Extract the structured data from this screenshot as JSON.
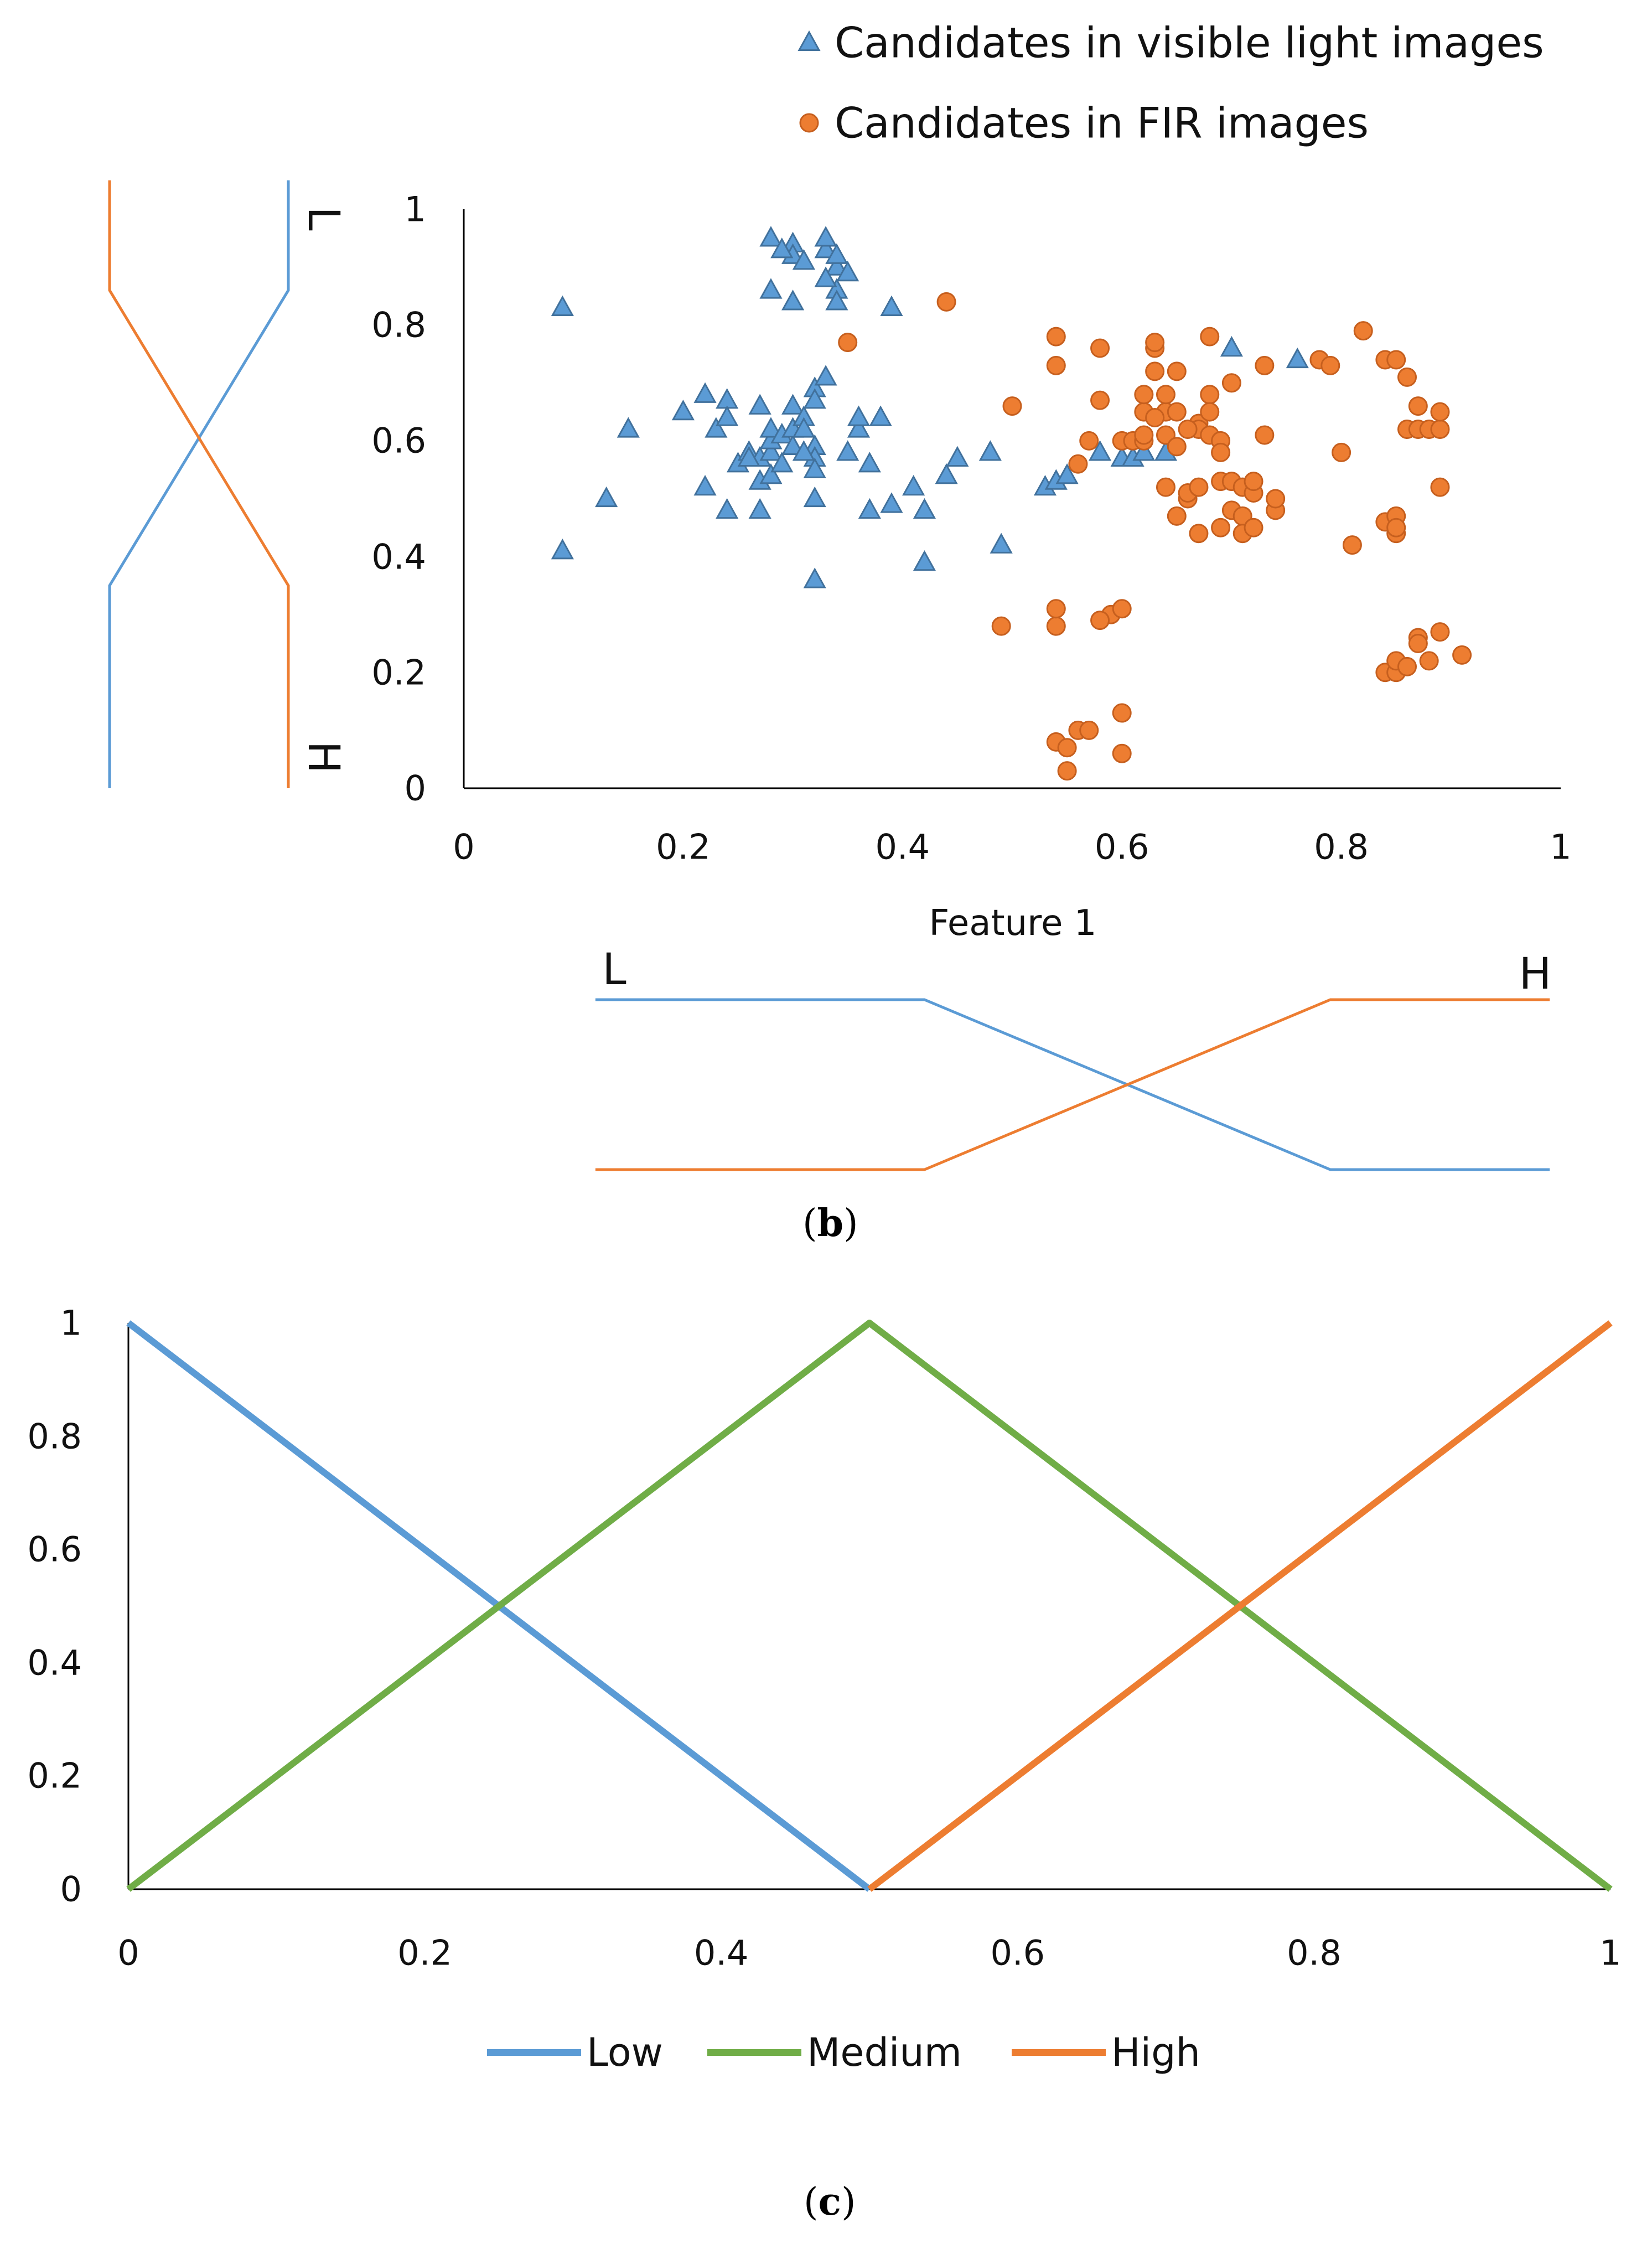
{
  "colors": {
    "visible": "#5b9bd5",
    "fir": "#ed7d31",
    "medium": "#70ad47",
    "axis": "#000000"
  },
  "captions": {
    "b": "b",
    "c": "c"
  },
  "chart_data": [
    {
      "type": "scatter",
      "id": "b",
      "xlabel": "Feature 1",
      "ylabel": "",
      "xlim": [
        0,
        1
      ],
      "ylim": [
        0,
        1
      ],
      "xticks": [
        "0",
        "0.2",
        "0.4",
        "0.6",
        "0.8",
        "1"
      ],
      "yticks": [
        "0",
        "0.2",
        "0.4",
        "0.6",
        "0.8",
        "1"
      ],
      "legend_position": "top-right",
      "legend": [
        "Candidates in visible light images",
        "Candidates in FIR images"
      ],
      "series": [
        {
          "name": "Candidates in visible light images",
          "marker": "triangle",
          "color": "#5b9bd5",
          "points": [
            [
              0.09,
              0.83
            ],
            [
              0.09,
              0.41
            ],
            [
              0.13,
              0.5
            ],
            [
              0.15,
              0.62
            ],
            [
              0.2,
              0.65
            ],
            [
              0.22,
              0.68
            ],
            [
              0.22,
              0.52
            ],
            [
              0.23,
              0.62
            ],
            [
              0.24,
              0.67
            ],
            [
              0.24,
              0.64
            ],
            [
              0.24,
              0.48
            ],
            [
              0.25,
              0.56
            ],
            [
              0.26,
              0.58
            ],
            [
              0.27,
              0.66
            ],
            [
              0.27,
              0.57
            ],
            [
              0.27,
              0.53
            ],
            [
              0.27,
              0.48
            ],
            [
              0.28,
              0.58
            ],
            [
              0.28,
              0.6
            ],
            [
              0.28,
              0.62
            ],
            [
              0.28,
              0.54
            ],
            [
              0.28,
              0.95
            ],
            [
              0.29,
              0.56
            ],
            [
              0.29,
              0.61
            ],
            [
              0.3,
              0.59
            ],
            [
              0.3,
              0.66
            ],
            [
              0.3,
              0.62
            ],
            [
              0.3,
              0.94
            ],
            [
              0.3,
              0.92
            ],
            [
              0.31,
              0.64
            ],
            [
              0.31,
              0.91
            ],
            [
              0.31,
              0.62
            ],
            [
              0.32,
              0.69
            ],
            [
              0.32,
              0.67
            ],
            [
              0.32,
              0.59
            ],
            [
              0.32,
              0.57
            ],
            [
              0.32,
              0.55
            ],
            [
              0.32,
              0.5
            ],
            [
              0.32,
              0.36
            ],
            [
              0.33,
              0.71
            ],
            [
              0.33,
              0.93
            ],
            [
              0.33,
              0.95
            ],
            [
              0.34,
              0.9
            ],
            [
              0.34,
              0.86
            ],
            [
              0.34,
              0.84
            ],
            [
              0.35,
              0.89
            ],
            [
              0.35,
              0.58
            ],
            [
              0.36,
              0.62
            ],
            [
              0.36,
              0.64
            ],
            [
              0.37,
              0.56
            ],
            [
              0.37,
              0.48
            ],
            [
              0.38,
              0.64
            ],
            [
              0.39,
              0.49
            ],
            [
              0.39,
              0.83
            ],
            [
              0.41,
              0.52
            ],
            [
              0.42,
              0.48
            ],
            [
              0.42,
              0.39
            ],
            [
              0.44,
              0.54
            ],
            [
              0.45,
              0.57
            ],
            [
              0.48,
              0.58
            ],
            [
              0.49,
              0.42
            ],
            [
              0.53,
              0.52
            ],
            [
              0.54,
              0.53
            ],
            [
              0.55,
              0.54
            ],
            [
              0.58,
              0.58
            ],
            [
              0.6,
              0.57
            ],
            [
              0.61,
              0.57
            ],
            [
              0.62,
              0.58
            ],
            [
              0.64,
              0.58
            ],
            [
              0.7,
              0.76
            ],
            [
              0.76,
              0.74
            ],
            [
              0.28,
              0.86
            ],
            [
              0.3,
              0.84
            ],
            [
              0.33,
              0.88
            ],
            [
              0.34,
              0.92
            ],
            [
              0.29,
              0.93
            ],
            [
              0.31,
              0.58
            ],
            [
              0.26,
              0.57
            ]
          ]
        },
        {
          "name": "Candidates in FIR images",
          "marker": "circle",
          "color": "#ed7d31",
          "points": [
            [
              0.44,
              0.84
            ],
            [
              0.35,
              0.77
            ],
            [
              0.5,
              0.66
            ],
            [
              0.54,
              0.78
            ],
            [
              0.54,
              0.73
            ],
            [
              0.55,
              0.03
            ],
            [
              0.54,
              0.08
            ],
            [
              0.55,
              0.07
            ],
            [
              0.56,
              0.1
            ],
            [
              0.57,
              0.1
            ],
            [
              0.56,
              0.56
            ],
            [
              0.57,
              0.6
            ],
            [
              0.58,
              0.76
            ],
            [
              0.58,
              0.67
            ],
            [
              0.59,
              0.3
            ],
            [
              0.58,
              0.29
            ],
            [
              0.6,
              0.31
            ],
            [
              0.6,
              0.13
            ],
            [
              0.6,
              0.06
            ],
            [
              0.6,
              0.6
            ],
            [
              0.61,
              0.6
            ],
            [
              0.62,
              0.6
            ],
            [
              0.62,
              0.65
            ],
            [
              0.62,
              0.68
            ],
            [
              0.63,
              0.72
            ],
            [
              0.63,
              0.76
            ],
            [
              0.63,
              0.77
            ],
            [
              0.64,
              0.65
            ],
            [
              0.64,
              0.61
            ],
            [
              0.64,
              0.52
            ],
            [
              0.65,
              0.47
            ],
            [
              0.65,
              0.59
            ],
            [
              0.65,
              0.65
            ],
            [
              0.65,
              0.72
            ],
            [
              0.66,
              0.5
            ],
            [
              0.66,
              0.51
            ],
            [
              0.67,
              0.44
            ],
            [
              0.67,
              0.63
            ],
            [
              0.67,
              0.62
            ],
            [
              0.67,
              0.52
            ],
            [
              0.68,
              0.78
            ],
            [
              0.68,
              0.68
            ],
            [
              0.68,
              0.65
            ],
            [
              0.68,
              0.61
            ],
            [
              0.69,
              0.6
            ],
            [
              0.69,
              0.58
            ],
            [
              0.69,
              0.53
            ],
            [
              0.69,
              0.45
            ],
            [
              0.7,
              0.7
            ],
            [
              0.7,
              0.53
            ],
            [
              0.7,
              0.48
            ],
            [
              0.71,
              0.52
            ],
            [
              0.71,
              0.47
            ],
            [
              0.71,
              0.44
            ],
            [
              0.72,
              0.51
            ],
            [
              0.72,
              0.53
            ],
            [
              0.72,
              0.45
            ],
            [
              0.73,
              0.73
            ],
            [
              0.73,
              0.61
            ],
            [
              0.74,
              0.48
            ],
            [
              0.74,
              0.5
            ],
            [
              0.49,
              0.28
            ],
            [
              0.54,
              0.28
            ],
            [
              0.54,
              0.31
            ],
            [
              0.78,
              0.74
            ],
            [
              0.79,
              0.73
            ],
            [
              0.8,
              0.58
            ],
            [
              0.81,
              0.42
            ],
            [
              0.82,
              0.79
            ],
            [
              0.84,
              0.74
            ],
            [
              0.84,
              0.46
            ],
            [
              0.85,
              0.47
            ],
            [
              0.85,
              0.44
            ],
            [
              0.85,
              0.45
            ],
            [
              0.85,
              0.74
            ],
            [
              0.86,
              0.71
            ],
            [
              0.86,
              0.62
            ],
            [
              0.87,
              0.66
            ],
            [
              0.87,
              0.62
            ],
            [
              0.88,
              0.62
            ],
            [
              0.89,
              0.62
            ],
            [
              0.89,
              0.65
            ],
            [
              0.89,
              0.52
            ],
            [
              0.84,
              0.2
            ],
            [
              0.85,
              0.2
            ],
            [
              0.85,
              0.22
            ],
            [
              0.86,
              0.21
            ],
            [
              0.87,
              0.26
            ],
            [
              0.87,
              0.25
            ],
            [
              0.88,
              0.22
            ],
            [
              0.89,
              0.27
            ],
            [
              0.91,
              0.23
            ],
            [
              0.66,
              0.62
            ],
            [
              0.64,
              0.68
            ],
            [
              0.63,
              0.64
            ],
            [
              0.62,
              0.61
            ]
          ]
        }
      ],
      "membership_functions": [
        {
          "axis": "x",
          "labels": [
            "L",
            "H"
          ],
          "series": [
            {
              "name": "L",
              "color": "#5b9bd5",
              "x": [
                0.12,
                0.42,
                0.79,
                0.99
              ],
              "y": [
                1,
                1,
                0,
                0
              ]
            },
            {
              "name": "H",
              "color": "#ed7d31",
              "x": [
                0.12,
                0.42,
                0.79,
                0.99
              ],
              "y": [
                0,
                0,
                1,
                1
              ]
            }
          ]
        },
        {
          "axis": "y",
          "labels": [
            "L",
            "H"
          ],
          "series": [
            {
              "name": "L",
              "color": "#5b9bd5",
              "y": [
                0,
                0.35,
                0.86,
                1.05
              ],
              "m": [
                0,
                0,
                1,
                1
              ]
            },
            {
              "name": "H",
              "color": "#ed7d31",
              "y": [
                0,
                0.35,
                0.86,
                1.05
              ],
              "m": [
                1,
                1,
                0,
                0
              ]
            }
          ]
        }
      ]
    },
    {
      "type": "line",
      "id": "c",
      "xlim": [
        0,
        1
      ],
      "ylim": [
        0,
        1
      ],
      "xticks": [
        "0",
        "0.2",
        "0.4",
        "0.6",
        "0.8",
        "1"
      ],
      "yticks": [
        "0",
        "0.2",
        "0.4",
        "0.6",
        "0.8",
        "1"
      ],
      "grid": false,
      "legend_position": "bottom",
      "series": [
        {
          "name": "Low",
          "color": "#5b9bd5",
          "x": [
            0,
            0.5
          ],
          "y": [
            1,
            0
          ]
        },
        {
          "name": "Medium",
          "color": "#70ad47",
          "x": [
            0,
            0.5,
            1
          ],
          "y": [
            0,
            1,
            0
          ]
        },
        {
          "name": "High",
          "color": "#ed7d31",
          "x": [
            0.5,
            1
          ],
          "y": [
            0,
            1
          ]
        }
      ]
    }
  ]
}
